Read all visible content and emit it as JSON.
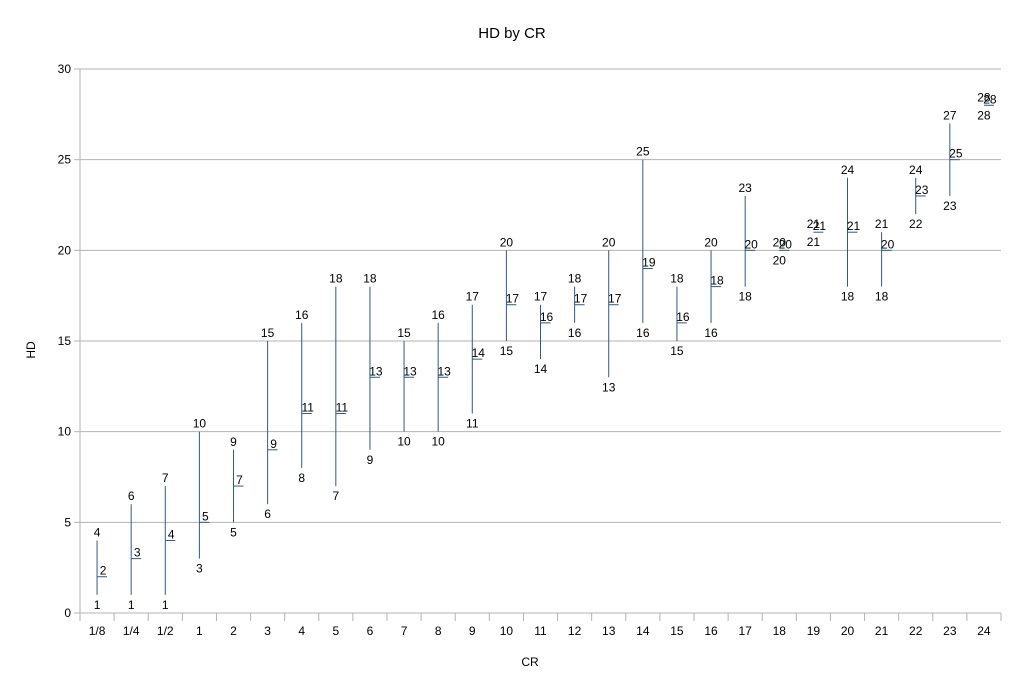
{
  "chart_data": {
    "type": "stock",
    "title": "HD by CR",
    "xlabel": "CR",
    "ylabel": "HD",
    "ylim": [
      0,
      30
    ],
    "yticks": [
      0,
      5,
      10,
      15,
      20,
      25,
      30
    ],
    "grid": true,
    "legend": "none",
    "categories": [
      "1/8",
      "1/4",
      "1/2",
      "1",
      "2",
      "3",
      "4",
      "5",
      "6",
      "7",
      "8",
      "9",
      "10",
      "11",
      "12",
      "13",
      "14",
      "15",
      "16",
      "17",
      "18",
      "19",
      "20",
      "21",
      "22",
      "23",
      "24"
    ],
    "series": [
      {
        "values": [
          1,
          1,
          1,
          3,
          5,
          6,
          8,
          7,
          9,
          10,
          10,
          11,
          15,
          14,
          16,
          13,
          16,
          15,
          16,
          18,
          20,
          21,
          18,
          18,
          22,
          23,
          28
        ]
      },
      {
        "values": [
          4,
          6,
          7,
          10,
          9,
          15,
          16,
          18,
          18,
          15,
          16,
          17,
          20,
          17,
          18,
          20,
          25,
          18,
          20,
          23,
          20,
          21,
          24,
          21,
          24,
          27,
          28
        ]
      },
      {
        "values": [
          2,
          3,
          4,
          5,
          7,
          9,
          11,
          11,
          13,
          13,
          13,
          14,
          17,
          16,
          17,
          17,
          19,
          16,
          18,
          20,
          20,
          21,
          21,
          20,
          23,
          25,
          28
        ]
      }
    ],
    "colors": {
      "line": "#2e5a87",
      "grid": "#b3b3b3",
      "axis": "#b3b3b3",
      "text": "#000000"
    }
  }
}
